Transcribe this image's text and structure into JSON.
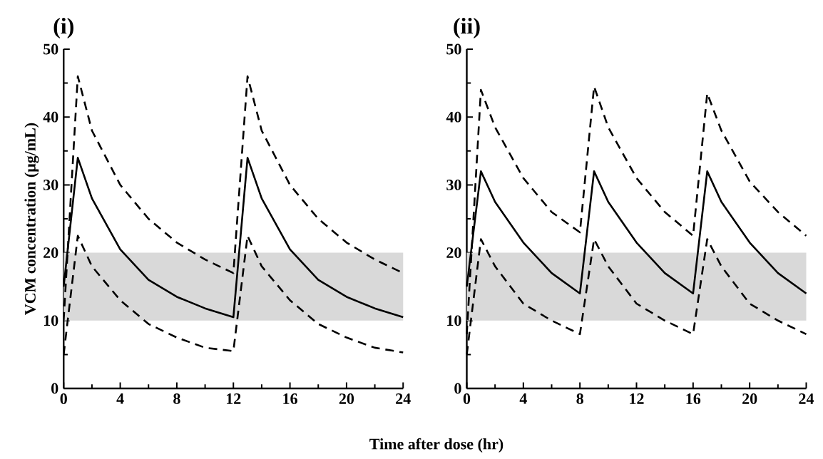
{
  "chart_data": [
    {
      "type": "line",
      "title": "(i)",
      "ylabel": "VCM concentration (μg/mL)",
      "xlabel": "Time after dose (hr)",
      "xlim": [
        0,
        24
      ],
      "ylim": [
        0,
        50
      ],
      "xticks": [
        0,
        4,
        8,
        12,
        16,
        20,
        24
      ],
      "yticks": [
        0,
        10,
        20,
        30,
        40,
        50
      ],
      "grid": false,
      "bands": [
        {
          "axis": "y",
          "from": 10,
          "to": 20,
          "color": "#d9d9d9"
        }
      ],
      "series": [
        {
          "color": "#000000",
          "line_style": "dashed",
          "x": [
            0,
            1,
            2,
            4,
            6,
            8,
            10,
            12,
            13,
            14,
            16,
            18,
            20,
            22,
            24
          ],
          "values": [
            10,
            46,
            38,
            30,
            25,
            21.5,
            19,
            17,
            46,
            38,
            30,
            25,
            21.5,
            19,
            17
          ]
        },
        {
          "color": "#000000",
          "line_style": "solid",
          "x": [
            0,
            1,
            2,
            4,
            6,
            8,
            10,
            12,
            13,
            14,
            16,
            18,
            20,
            22,
            24
          ],
          "values": [
            15,
            34,
            28,
            20.5,
            16,
            13.5,
            11.8,
            10.5,
            34,
            28,
            20.5,
            16,
            13.5,
            11.8,
            10.5
          ]
        },
        {
          "color": "#000000",
          "line_style": "dashed",
          "x": [
            0,
            1,
            2,
            4,
            6,
            8,
            10,
            12,
            13,
            14,
            16,
            18,
            20,
            22,
            24
          ],
          "values": [
            5,
            22.5,
            18,
            13,
            9.5,
            7.5,
            6,
            5.5,
            22.5,
            18,
            13,
            9.5,
            7.5,
            6,
            5.3
          ]
        }
      ]
    },
    {
      "type": "line",
      "title": "(ii)",
      "xlim": [
        0,
        24
      ],
      "ylim": [
        0,
        50
      ],
      "xticks": [
        0,
        4,
        8,
        12,
        16,
        20,
        24
      ],
      "yticks": [
        0,
        10,
        20,
        30,
        40,
        50
      ],
      "grid": false,
      "bands": [
        {
          "axis": "y",
          "from": 10,
          "to": 20,
          "color": "#d9d9d9"
        }
      ],
      "series": [
        {
          "color": "#000000",
          "line_style": "dashed",
          "x": [
            0,
            1,
            2,
            4,
            6,
            8,
            9,
            10,
            12,
            14,
            16,
            17,
            18,
            20,
            22,
            24
          ],
          "values": [
            8,
            44,
            38.5,
            31,
            26,
            23,
            44.5,
            38.5,
            31,
            26,
            22.5,
            43.5,
            38,
            30.5,
            26,
            22.5
          ]
        },
        {
          "color": "#000000",
          "line_style": "solid",
          "x": [
            0,
            1,
            2,
            4,
            6,
            8,
            9,
            10,
            12,
            14,
            16,
            17,
            18,
            20,
            22,
            24
          ],
          "values": [
            15,
            32,
            27.5,
            21.5,
            17,
            14,
            32,
            27.5,
            21.5,
            17,
            14,
            32,
            27.5,
            21.5,
            17,
            14
          ]
        },
        {
          "color": "#000000",
          "line_style": "dashed",
          "x": [
            0,
            1,
            2,
            4,
            6,
            8,
            9,
            10,
            12,
            14,
            16,
            17,
            18,
            20,
            22,
            24
          ],
          "values": [
            5,
            22,
            18,
            12.5,
            10,
            8,
            22,
            18,
            12.5,
            10,
            8,
            22,
            18,
            12.5,
            10,
            8
          ]
        }
      ]
    }
  ]
}
